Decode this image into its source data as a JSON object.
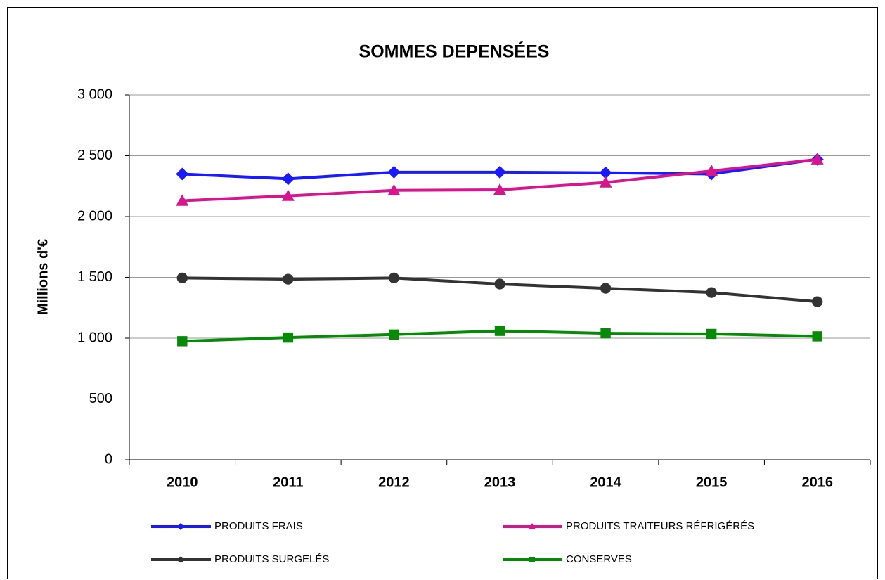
{
  "chart_data": {
    "type": "line",
    "title": "SOMMES DEPENSÉES",
    "y_label": "Millions d'€",
    "categories": [
      "2010",
      "2011",
      "2012",
      "2013",
      "2014",
      "2015",
      "2016"
    ],
    "series": [
      {
        "name": "PRODUITS FRAIS",
        "color": "#1a1aff",
        "marker": "diamond",
        "values": [
          2350,
          2310,
          2365,
          2365,
          2360,
          2350,
          2470
        ]
      },
      {
        "name": "PRODUITS TRAITEURS RÉFRIGÉRÉS",
        "color": "#d6168f",
        "marker": "triangle",
        "values": [
          2130,
          2170,
          2215,
          2220,
          2280,
          2375,
          2470
        ]
      },
      {
        "name": "PRODUITS SURGELÉS",
        "color": "#333333",
        "marker": "circle",
        "values": [
          1495,
          1485,
          1495,
          1445,
          1410,
          1375,
          1300
        ]
      },
      {
        "name": "CONSERVES",
        "color": "#078a07",
        "marker": "square",
        "values": [
          975,
          1005,
          1030,
          1060,
          1040,
          1035,
          1015
        ]
      }
    ],
    "ylim": [
      0,
      3000
    ],
    "yticks": [
      0,
      500,
      {
        "value": 1000,
        "label": "1 000"
      },
      {
        "value": 1500,
        "label": "1 500"
      },
      {
        "value": 2000,
        "label": "2 000"
      },
      {
        "value": 2500,
        "label": "2 500"
      },
      {
        "value": 3000,
        "label": "3 000"
      }
    ],
    "grid": true,
    "legend": "bottom"
  }
}
